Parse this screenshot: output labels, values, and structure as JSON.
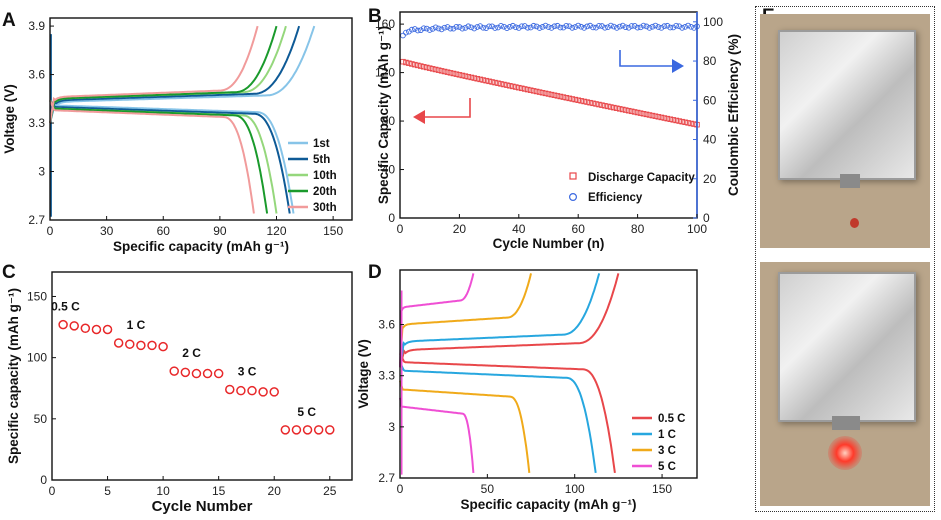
{
  "panels": {
    "A": {
      "label": "A"
    },
    "B": {
      "label": "B"
    },
    "C": {
      "label": "C"
    },
    "D": {
      "label": "D"
    },
    "E": {
      "label": "E"
    }
  },
  "chart_data": [
    {
      "id": "A",
      "type": "line",
      "xlabel": "Specific capacity (mAh g⁻¹)",
      "ylabel": "Voltage (V)",
      "xlim": [
        0,
        160
      ],
      "ylim": [
        2.7,
        3.95
      ],
      "xticks": [
        "0",
        "30",
        "60",
        "90",
        "120",
        "150"
      ],
      "yticks": [
        "2.7",
        "3",
        "3.3",
        "3.6",
        "3.9"
      ],
      "legend": "right",
      "series": [
        {
          "name": "1st",
          "color": "#87c4e8",
          "charge_end": 140,
          "discharge_end": 129,
          "vcharge": 3.43,
          "vdis": 3.41
        },
        {
          "name": "5th",
          "color": "#0e5a96",
          "charge_end": 132,
          "discharge_end": 127,
          "vcharge": 3.44,
          "vdis": 3.4
        },
        {
          "name": "10th",
          "color": "#95d77c",
          "charge_end": 125,
          "discharge_end": 120,
          "vcharge": 3.45,
          "vdis": 3.39
        },
        {
          "name": "20th",
          "color": "#1a9a2c",
          "charge_end": 120,
          "discharge_end": 115,
          "vcharge": 3.45,
          "vdis": 3.39
        },
        {
          "name": "30th",
          "color": "#f19b9b",
          "charge_end": 110,
          "discharge_end": 108,
          "vcharge": 3.46,
          "vdis": 3.38
        }
      ]
    },
    {
      "id": "B",
      "type": "scatter",
      "xlabel": "Cycle Number (n)",
      "ylabel": "Specific Capacity (mAh g⁻¹)",
      "ylabel2": "Coulombic Efficiency (%)",
      "xlim": [
        0,
        100
      ],
      "ylim": [
        0,
        170
      ],
      "ylim2": [
        0,
        105
      ],
      "xticks": [
        "0",
        "20",
        "40",
        "60",
        "80",
        "100"
      ],
      "yticks": [
        "0",
        "40",
        "80",
        "120",
        "160"
      ],
      "yticks2": [
        "0",
        "20",
        "40",
        "60",
        "80",
        "100"
      ],
      "series": [
        {
          "name": "Discharge Capacity",
          "color": "#e8474a",
          "marker": "square",
          "start": 129,
          "end": 77
        },
        {
          "name": "Efficiency",
          "color": "#3a68e0",
          "marker": "circle",
          "start": 93,
          "plateau": 97.5
        }
      ]
    },
    {
      "id": "C",
      "type": "scatter",
      "xlabel": "Cycle Number",
      "ylabel": "Specific capacity (mAh g⁻¹)",
      "xlim": [
        0,
        27
      ],
      "ylim": [
        0,
        170
      ],
      "xticks": [
        "0",
        "5",
        "10",
        "15",
        "20",
        "25"
      ],
      "yticks": [
        "0",
        "50",
        "100",
        "150"
      ],
      "groups": [
        {
          "rate": "0.5 C",
          "x": [
            1,
            2,
            3,
            4,
            5
          ],
          "values": [
            127,
            126,
            124,
            123,
            123
          ]
        },
        {
          "rate": "1 C",
          "x": [
            6,
            7,
            8,
            9,
            10
          ],
          "values": [
            112,
            111,
            110,
            110,
            109
          ]
        },
        {
          "rate": "2 C",
          "x": [
            11,
            12,
            13,
            14,
            15
          ],
          "values": [
            89,
            88,
            87,
            87,
            87
          ]
        },
        {
          "rate": "3 C",
          "x": [
            16,
            17,
            18,
            19,
            20
          ],
          "values": [
            74,
            73,
            73,
            72,
            72
          ]
        },
        {
          "rate": "5 C",
          "x": [
            21,
            22,
            23,
            24,
            25
          ],
          "values": [
            41,
            41,
            41,
            41,
            41
          ]
        }
      ],
      "marker_color": "#e8282a"
    },
    {
      "id": "D",
      "type": "line",
      "xlabel": "Specific capacity (mAh g⁻¹)",
      "ylabel": "Voltage (V)",
      "xlim": [
        0,
        170
      ],
      "ylim": [
        2.7,
        3.92
      ],
      "xticks": [
        "0",
        "50",
        "100",
        "150"
      ],
      "yticks": [
        "2.7",
        "3",
        "3.3",
        "3.6"
      ],
      "legend": "bottom-right",
      "series": [
        {
          "name": "0.5 C",
          "color": "#e8474a",
          "charge_end": 125,
          "discharge_end": 123,
          "vch": 3.45,
          "vdis": 3.38
        },
        {
          "name": "1 C",
          "color": "#27a7df",
          "charge_end": 114,
          "discharge_end": 112,
          "vch": 3.5,
          "vdis": 3.33
        },
        {
          "name": "3 C",
          "color": "#f0aa1a",
          "charge_end": 75,
          "discharge_end": 74,
          "vch": 3.6,
          "vdis": 3.22
        },
        {
          "name": "5 C",
          "color": "#ef4fd4",
          "charge_end": 42,
          "discharge_end": 42,
          "vch": 3.7,
          "vdis": 3.12
        }
      ]
    }
  ]
}
